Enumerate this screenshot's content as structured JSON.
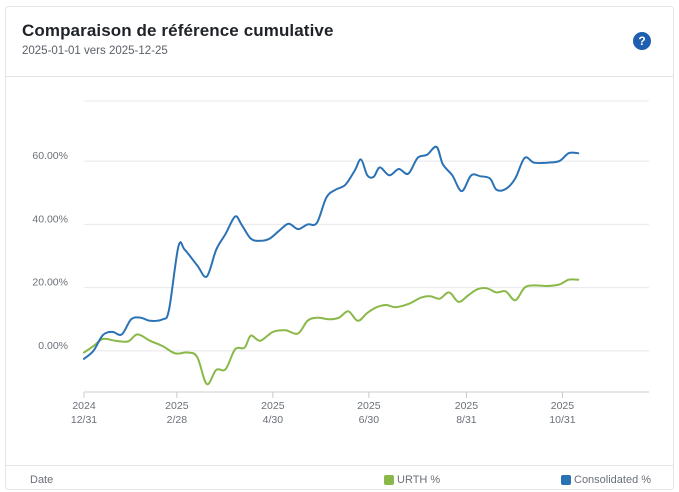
{
  "header": {
    "title": "Comparaison de référence cumulative",
    "subtitle": "2025-01-01 vers 2025-12-25",
    "help_icon": "question-circle-icon",
    "help_label": "?"
  },
  "footer": {
    "x_label": "Date"
  },
  "chart_data": {
    "type": "line",
    "title": "Comparaison de référence cumulative",
    "subtitle": "2025-01-01 vers 2025-12-25",
    "xlabel": "Date",
    "ylabel": "",
    "ylim": [
      -13,
      79
    ],
    "y_ticks": [
      {
        "value": 0,
        "label": "0.00%"
      },
      {
        "value": 20,
        "label": "20.00%"
      },
      {
        "value": 40,
        "label": "40.00%"
      },
      {
        "value": 60,
        "label": "60.00%"
      }
    ],
    "x_range_days": [
      0,
      359
    ],
    "x_ticks": [
      {
        "day": 0,
        "year": "2024",
        "date": "12/31"
      },
      {
        "day": 59,
        "year": "2025",
        "date": "2/28"
      },
      {
        "day": 120,
        "year": "2025",
        "date": "4/30"
      },
      {
        "day": 181,
        "year": "2025",
        "date": "6/30"
      },
      {
        "day": 243,
        "year": "2025",
        "date": "8/31"
      },
      {
        "day": 304,
        "year": "2025",
        "date": "10/31"
      }
    ],
    "legend_position": "bottom-right",
    "series": [
      {
        "name": "URTH %",
        "color": "#8ab849",
        "points": [
          [
            0,
            -0.5
          ],
          [
            6,
            1.5
          ],
          [
            12,
            3.8
          ],
          [
            20,
            3.2
          ],
          [
            28,
            3
          ],
          [
            34,
            5.2
          ],
          [
            42,
            3.2
          ],
          [
            50,
            1.5
          ],
          [
            58,
            -0.8
          ],
          [
            66,
            -0.5
          ],
          [
            72,
            -2
          ],
          [
            78,
            -10.5
          ],
          [
            84,
            -6
          ],
          [
            90,
            -5.8
          ],
          [
            96,
            0.5
          ],
          [
            102,
            1
          ],
          [
            106,
            4.8
          ],
          [
            112,
            3.2
          ],
          [
            120,
            6
          ],
          [
            128,
            6.5
          ],
          [
            136,
            5.5
          ],
          [
            142,
            9.5
          ],
          [
            148,
            10.5
          ],
          [
            156,
            10
          ],
          [
            162,
            10.5
          ],
          [
            168,
            12.5
          ],
          [
            174,
            9.5
          ],
          [
            180,
            12
          ],
          [
            186,
            13.8
          ],
          [
            192,
            14.5
          ],
          [
            198,
            13.8
          ],
          [
            206,
            14.8
          ],
          [
            214,
            16.8
          ],
          [
            220,
            17.3
          ],
          [
            226,
            16.5
          ],
          [
            232,
            18.5
          ],
          [
            238,
            15.5
          ],
          [
            244,
            17.5
          ],
          [
            250,
            19.5
          ],
          [
            256,
            19.8
          ],
          [
            262,
            18.5
          ],
          [
            268,
            18.8
          ],
          [
            274,
            16
          ],
          [
            280,
            20
          ],
          [
            286,
            20.7
          ],
          [
            294,
            20.5
          ],
          [
            302,
            21
          ],
          [
            308,
            22.5
          ],
          [
            314,
            22.5
          ]
        ]
      },
      {
        "name": "Consolidated %",
        "color": "#2b72b5",
        "points": [
          [
            0,
            -2.5
          ],
          [
            6,
            0
          ],
          [
            12,
            5
          ],
          [
            18,
            6
          ],
          [
            24,
            5.2
          ],
          [
            30,
            10
          ],
          [
            36,
            10.5
          ],
          [
            42,
            9.5
          ],
          [
            50,
            10
          ],
          [
            54,
            13
          ],
          [
            60,
            33
          ],
          [
            64,
            32
          ],
          [
            72,
            27
          ],
          [
            78,
            23.5
          ],
          [
            84,
            32
          ],
          [
            90,
            37
          ],
          [
            96,
            42.5
          ],
          [
            100,
            40
          ],
          [
            106,
            35.5
          ],
          [
            112,
            34.8
          ],
          [
            118,
            35.5
          ],
          [
            124,
            38
          ],
          [
            130,
            40.2
          ],
          [
            136,
            38.5
          ],
          [
            142,
            40
          ],
          [
            148,
            40.5
          ],
          [
            154,
            48.5
          ],
          [
            160,
            51
          ],
          [
            166,
            52.5
          ],
          [
            172,
            57
          ],
          [
            176,
            60.5
          ],
          [
            180,
            55.5
          ],
          [
            184,
            55
          ],
          [
            188,
            58
          ],
          [
            194,
            55.5
          ],
          [
            200,
            57.5
          ],
          [
            206,
            56
          ],
          [
            212,
            61
          ],
          [
            218,
            62
          ],
          [
            224,
            64.5
          ],
          [
            228,
            59
          ],
          [
            234,
            55.5
          ],
          [
            240,
            50.5
          ],
          [
            246,
            55.5
          ],
          [
            252,
            55.2
          ],
          [
            258,
            54.5
          ],
          [
            262,
            51
          ],
          [
            268,
            51.2
          ],
          [
            274,
            54.5
          ],
          [
            280,
            61
          ],
          [
            286,
            59.5
          ],
          [
            294,
            59.5
          ],
          [
            302,
            60
          ],
          [
            308,
            62.5
          ],
          [
            314,
            62.5
          ]
        ]
      }
    ]
  }
}
